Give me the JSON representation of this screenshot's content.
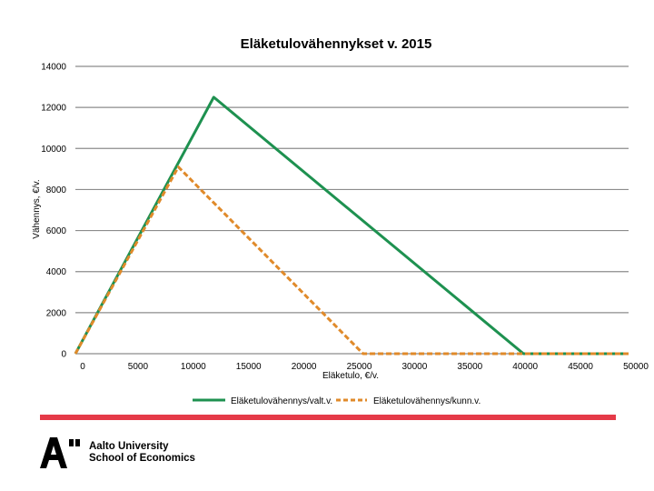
{
  "chart_data": {
    "type": "line",
    "title": "Eläketulovähennykset v. 2015",
    "xlabel": "Eläketulo, €/v.",
    "ylabel": "Vähennys, €/v.",
    "xlim": [
      0,
      50000
    ],
    "ylim": [
      0,
      14000
    ],
    "x_ticks": [
      "0",
      "5000",
      "10000",
      "15000",
      "20000",
      "25000",
      "30000",
      "35000",
      "40000",
      "45000",
      "50000"
    ],
    "y_ticks": [
      "0",
      "2000",
      "4000",
      "6000",
      "8000",
      "10000",
      "12000",
      "14000"
    ],
    "grid": "horizontal",
    "legend_position": "bottom",
    "series": [
      {
        "name": "Eläketulovähennys/valt.v.",
        "color": "#1e9150",
        "style": "solid",
        "points": [
          [
            0,
            0
          ],
          [
            12500,
            12500
          ],
          [
            40500,
            0
          ],
          [
            50000,
            0
          ]
        ]
      },
      {
        "name": "Eläketulovähennys/kunn.v.",
        "color": "#e08a2a",
        "style": "dashed",
        "points": [
          [
            0,
            0
          ],
          [
            9300,
            9100
          ],
          [
            26000,
            0
          ],
          [
            50000,
            0
          ]
        ]
      }
    ]
  },
  "footer": {
    "bar_color": "#e53a48",
    "logo_line1": "Aalto University",
    "logo_line2": "School of Economics"
  }
}
